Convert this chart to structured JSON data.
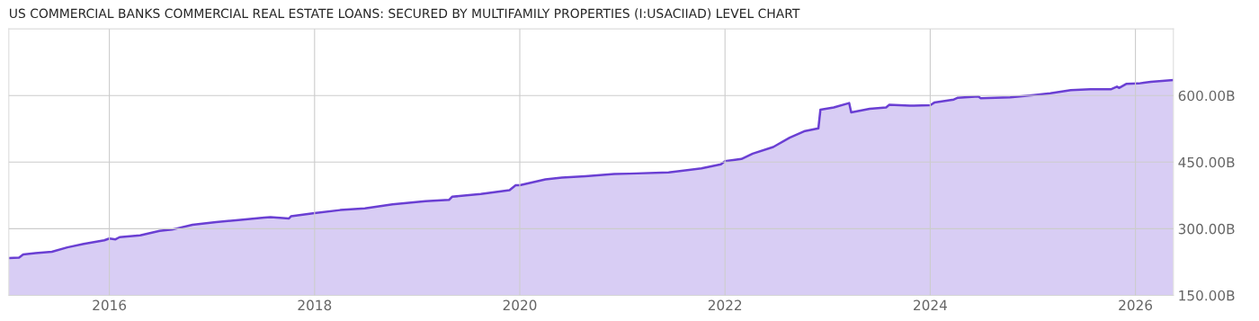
{
  "chart_data": {
    "type": "area",
    "title": "US COMMERCIAL BANKS COMMERCIAL REAL ESTATE LOANS: SECURED BY MULTIFAMILY PROPERTIES (I:USACIIAD) LEVEL CHART",
    "xlim": [
      2015.02,
      2026.37
    ],
    "xticks": [
      2016,
      2018,
      2020,
      2022,
      2024,
      2026
    ],
    "ylim": [
      150,
      750
    ],
    "yticks": [
      {
        "value": 150,
        "label": "150.00B"
      },
      {
        "value": 300,
        "label": "300.00B"
      },
      {
        "value": 450,
        "label": "450.00B"
      },
      {
        "value": 600,
        "label": "600.00B"
      }
    ],
    "grid": true,
    "series": [
      {
        "color": "#6a3fd3",
        "x": [
          2015.02,
          2015.12,
          2015.16,
          2015.28,
          2015.44,
          2015.59,
          2015.75,
          2015.95,
          2016.0,
          2016.06,
          2016.1,
          2016.3,
          2016.49,
          2016.61,
          2016.81,
          2017.04,
          2017.28,
          2017.51,
          2017.57,
          2017.75,
          2017.77,
          2018.0,
          2018.25,
          2018.49,
          2018.76,
          2019.08,
          2019.31,
          2019.34,
          2019.62,
          2019.9,
          2019.96,
          2020.0,
          2020.25,
          2020.41,
          2020.64,
          2020.92,
          2021.07,
          2021.45,
          2021.77,
          2021.96,
          2022.0,
          2022.16,
          2022.27,
          2022.47,
          2022.63,
          2022.78,
          2022.91,
          2022.93,
          2023.06,
          2023.21,
          2023.23,
          2023.41,
          2023.57,
          2023.6,
          2023.8,
          2024.0,
          2024.04,
          2024.23,
          2024.27,
          2024.47,
          2024.49,
          2024.78,
          2025.01,
          2025.17,
          2025.37,
          2025.56,
          2025.76,
          2025.82,
          2025.84,
          2025.91,
          2026.03,
          2026.15,
          2026.37
        ],
        "values": [
          234,
          235,
          242,
          245,
          248,
          258,
          266,
          274,
          278,
          276,
          281,
          285,
          295,
          298,
          309,
          315,
          320,
          325,
          326,
          323,
          328,
          335,
          342,
          346,
          355,
          362,
          365,
          372,
          378,
          387,
          398,
          398,
          411,
          415,
          418,
          423,
          424,
          427,
          436,
          445,
          452,
          457,
          469,
          484,
          505,
          520,
          526,
          568,
          573,
          583,
          562,
          570,
          573,
          579,
          577,
          578,
          584,
          591,
          595,
          598,
          594,
          596,
          601,
          605,
          612,
          614,
          614,
          620,
          617,
          626,
          627,
          631,
          635
        ]
      }
    ]
  }
}
